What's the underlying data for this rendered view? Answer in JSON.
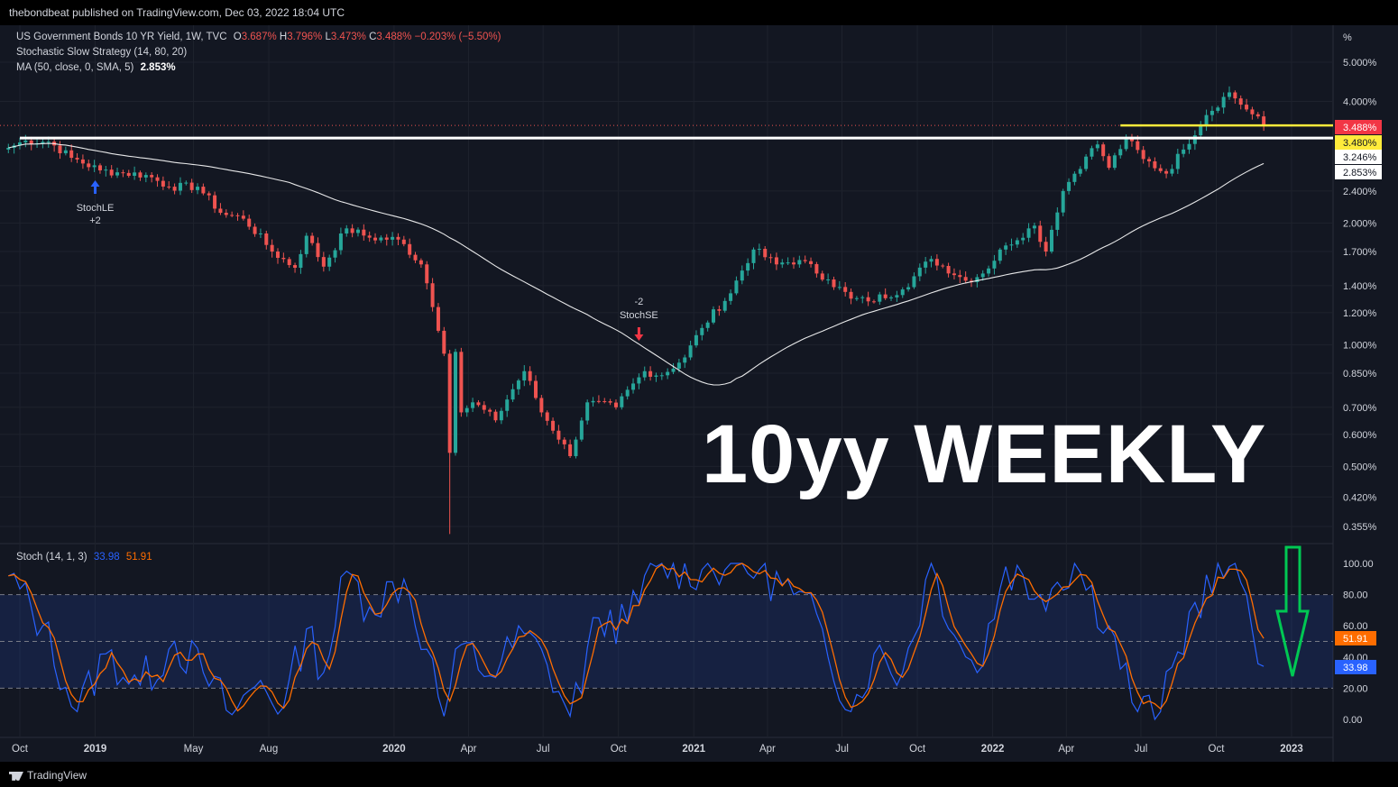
{
  "header": {
    "publish_line": "thebondbeat published on TradingView.com, Dec 03, 2022 18:04 UTC"
  },
  "legend": {
    "symbol": "US Government Bonds 10 YR Yield, 1W, TVC",
    "o_label": "O",
    "o_value": "3.687%",
    "h_label": "H",
    "h_value": "3.796%",
    "l_label": "L",
    "l_value": "3.473%",
    "c_label": "C",
    "c_value": "3.488%",
    "change": "−0.203% (−5.50%)",
    "strategy": "Stochastic Slow Strategy (14, 80, 20)",
    "ma_label": "MA (50, close, 0, SMA, 5)",
    "ma_value": "2.853%",
    "stoch_label": "Stoch (14, 1, 3)",
    "stoch_k": "33.98",
    "stoch_d": "51.91"
  },
  "overlay_title": "10yy WEEKLY",
  "footer": {
    "brand": "TradingView"
  },
  "colors": {
    "up": "#26a69a",
    "down": "#ef5350",
    "ma": "#ffffff",
    "k": "#2962ff",
    "d": "#ff6d00",
    "resistance": "#ffffff",
    "yellow": "#ffeb3b"
  },
  "chart_data": [
    {
      "type": "candlestick",
      "scale": "log",
      "unit_label": "%",
      "yticks": [
        "5.000%",
        "4.000%",
        "2.400%",
        "2.000%",
        "1.700%",
        "1.400%",
        "1.200%",
        "1.000%",
        "0.850%",
        "0.700%",
        "0.600%",
        "0.500%",
        "0.420%",
        "0.355%"
      ],
      "ytick_values": [
        5.0,
        4.0,
        2.4,
        2.0,
        1.7,
        1.4,
        1.2,
        1.0,
        0.85,
        0.7,
        0.6,
        0.5,
        0.42,
        0.355
      ],
      "xticks": [
        "Oct",
        "2019",
        "May",
        "Aug",
        "2020",
        "Apr",
        "Jul",
        "Oct",
        "2021",
        "Apr",
        "Jul",
        "Oct",
        "2022",
        "Apr",
        "Jul",
        "Oct",
        "2023"
      ],
      "xtick_dates": [
        "2018-10-01",
        "2019-01-01",
        "2019-05-01",
        "2019-08-01",
        "2020-01-01",
        "2020-04-01",
        "2020-07-01",
        "2020-10-01",
        "2021-01-01",
        "2021-04-01",
        "2021-07-01",
        "2021-10-01",
        "2022-01-01",
        "2022-04-01",
        "2022-07-01",
        "2022-10-01",
        "2023-01-01"
      ],
      "last_price_labels": [
        "3.488%",
        "3.480%",
        "3.246%",
        "2.853%"
      ],
      "last_price_values": [
        3.488,
        3.48,
        3.246,
        2.853
      ],
      "close_anchors": [
        [
          "2018-09-17",
          3.07
        ],
        [
          "2018-10-08",
          3.2
        ],
        [
          "2018-11-05",
          3.18
        ],
        [
          "2018-12-03",
          2.9
        ],
        [
          "2019-01-07",
          2.7
        ],
        [
          "2019-02-04",
          2.66
        ],
        [
          "2019-03-04",
          2.63
        ],
        [
          "2019-04-01",
          2.46
        ],
        [
          "2019-05-06",
          2.46
        ],
        [
          "2019-06-03",
          2.12
        ],
        [
          "2019-07-01",
          2.05
        ],
        [
          "2019-08-05",
          1.7
        ],
        [
          "2019-09-02",
          1.55
        ],
        [
          "2019-09-16",
          1.86
        ],
        [
          "2019-10-07",
          1.56
        ],
        [
          "2019-11-04",
          1.94
        ],
        [
          "2019-12-02",
          1.84
        ],
        [
          "2020-01-06",
          1.82
        ],
        [
          "2020-02-03",
          1.58
        ],
        [
          "2020-03-02",
          0.95
        ],
        [
          "2020-03-09",
          0.54
        ],
        [
          "2020-03-16",
          0.96
        ],
        [
          "2020-03-23",
          0.68
        ],
        [
          "2020-04-06",
          0.72
        ],
        [
          "2020-05-04",
          0.65
        ],
        [
          "2020-06-08",
          0.86
        ],
        [
          "2020-06-29",
          0.68
        ],
        [
          "2020-08-03",
          0.53
        ],
        [
          "2020-08-24",
          0.72
        ],
        [
          "2020-09-28",
          0.7
        ],
        [
          "2020-11-02",
          0.86
        ],
        [
          "2020-11-23",
          0.84
        ],
        [
          "2020-12-21",
          0.93
        ],
        [
          "2021-01-11",
          1.1
        ],
        [
          "2021-02-15",
          1.34
        ],
        [
          "2021-03-15",
          1.72
        ],
        [
          "2021-04-12",
          1.58
        ],
        [
          "2021-05-10",
          1.62
        ],
        [
          "2021-06-14",
          1.45
        ],
        [
          "2021-07-12",
          1.3
        ],
        [
          "2021-08-02",
          1.28
        ],
        [
          "2021-09-13",
          1.37
        ],
        [
          "2021-10-18",
          1.63
        ],
        [
          "2021-11-29",
          1.44
        ],
        [
          "2021-12-20",
          1.5
        ],
        [
          "2022-01-17",
          1.76
        ],
        [
          "2022-02-21",
          1.97
        ],
        [
          "2022-03-07",
          1.7
        ],
        [
          "2022-03-28",
          2.4
        ],
        [
          "2022-04-25",
          2.92
        ],
        [
          "2022-05-09",
          3.13
        ],
        [
          "2022-05-23",
          2.74
        ],
        [
          "2022-06-13",
          3.24
        ],
        [
          "2022-07-04",
          2.88
        ],
        [
          "2022-08-01",
          2.65
        ],
        [
          "2022-08-22",
          3.04
        ],
        [
          "2022-09-19",
          3.7
        ],
        [
          "2022-10-17",
          4.21
        ],
        [
          "2022-11-07",
          3.82
        ],
        [
          "2022-11-28",
          3.488
        ]
      ],
      "ma_label_value": 2.853,
      "horizontal_lines": [
        {
          "value": 3.246,
          "color": "white"
        },
        {
          "value": 3.488,
          "color": "yellow"
        }
      ],
      "signals": [
        {
          "date": "2019-01-01",
          "direction": "long",
          "label": "StochLE",
          "qty": "+2"
        },
        {
          "date": "2020-10-26",
          "direction": "short",
          "label": "StochSE",
          "qty": "-2"
        }
      ]
    },
    {
      "type": "line",
      "yticks": [
        "100.00",
        "80.00",
        "60.00",
        "40.00",
        "20.00",
        "0.00"
      ],
      "ytick_values": [
        100,
        80,
        60,
        40,
        20,
        0
      ],
      "band": [
        20,
        80
      ],
      "midline": 50,
      "last_values": [
        51.91,
        33.98
      ],
      "series": [
        {
          "name": "%K",
          "last": 33.98
        },
        {
          "name": "%D",
          "last": 51.91
        }
      ],
      "k_anchors": [
        [
          "2018-09-17",
          92
        ],
        [
          "2018-10-29",
          60
        ],
        [
          "2018-12-10",
          5
        ],
        [
          "2019-01-14",
          42
        ],
        [
          "2019-02-25",
          22
        ],
        [
          "2019-04-08",
          50
        ],
        [
          "2019-05-13",
          30
        ],
        [
          "2019-06-17",
          3
        ],
        [
          "2019-07-22",
          25
        ],
        [
          "2019-08-19",
          8
        ],
        [
          "2019-09-16",
          58
        ],
        [
          "2019-10-07",
          30
        ],
        [
          "2019-11-04",
          95
        ],
        [
          "2019-12-02",
          72
        ],
        [
          "2020-01-13",
          90
        ],
        [
          "2020-02-10",
          45
        ],
        [
          "2020-03-02",
          2
        ],
        [
          "2020-03-23",
          48
        ],
        [
          "2020-04-27",
          28
        ],
        [
          "2020-06-08",
          55
        ],
        [
          "2020-07-06",
          35
        ],
        [
          "2020-08-03",
          2
        ],
        [
          "2020-09-07",
          65
        ],
        [
          "2020-10-12",
          62
        ],
        [
          "2020-11-16",
          98
        ],
        [
          "2021-01-11",
          96
        ],
        [
          "2021-02-15",
          100
        ],
        [
          "2021-03-22",
          96
        ],
        [
          "2021-05-03",
          80
        ],
        [
          "2021-06-07",
          58
        ],
        [
          "2021-07-12",
          5
        ],
        [
          "2021-08-09",
          42
        ],
        [
          "2021-09-13",
          30
        ],
        [
          "2021-10-18",
          100
        ],
        [
          "2021-11-22",
          48
        ],
        [
          "2021-12-13",
          30
        ],
        [
          "2022-01-17",
          98
        ],
        [
          "2022-02-28",
          80
        ],
        [
          "2022-04-11",
          100
        ],
        [
          "2022-05-23",
          60
        ],
        [
          "2022-06-27",
          5
        ],
        [
          "2022-07-25",
          5
        ],
        [
          "2022-09-05",
          75
        ],
        [
          "2022-10-17",
          98
        ],
        [
          "2022-11-07",
          80
        ],
        [
          "2022-11-28",
          33.98
        ]
      ]
    }
  ]
}
